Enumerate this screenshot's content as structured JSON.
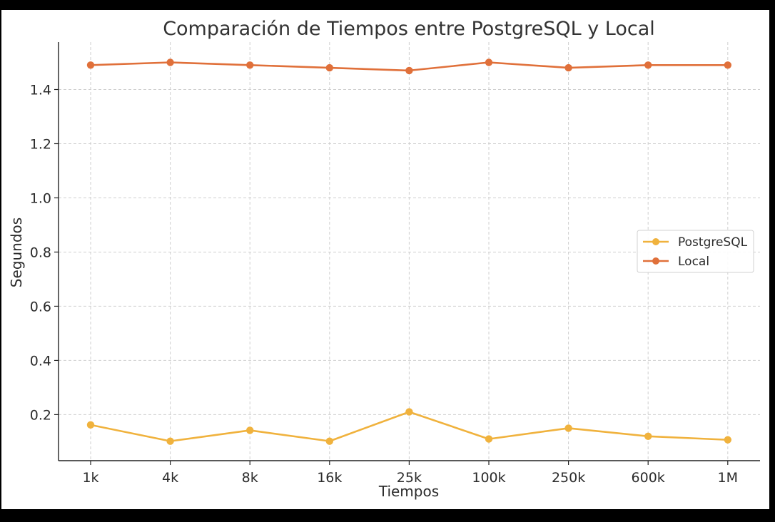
{
  "chart_data": {
    "type": "line",
    "title": "Comparación de Tiempos entre PostgreSQL y Local",
    "xlabel": "Tiempos",
    "ylabel": "Segundos",
    "categories": [
      "1k",
      "4k",
      "8k",
      "16k",
      "25k",
      "100k",
      "250k",
      "600k",
      "1M"
    ],
    "ylim": [
      0.03,
      1.575
    ],
    "yticks": [
      0.2,
      0.4,
      0.6,
      0.8,
      1.0,
      1.2,
      1.4
    ],
    "ytick_labels": [
      "0.2",
      "0.4",
      "0.6",
      "0.8",
      "1.0",
      "1.2",
      "1.4"
    ],
    "grid": true,
    "legend_position": "center-right",
    "series": [
      {
        "name": "PostgreSQL",
        "color": "#f0b23d",
        "values": [
          0.162,
          0.102,
          0.142,
          0.102,
          0.21,
          0.11,
          0.15,
          0.12,
          0.107
        ]
      },
      {
        "name": "Local",
        "color": "#e0703a",
        "values": [
          1.49,
          1.5,
          1.49,
          1.48,
          1.47,
          1.5,
          1.48,
          1.49,
          1.49
        ]
      }
    ]
  }
}
